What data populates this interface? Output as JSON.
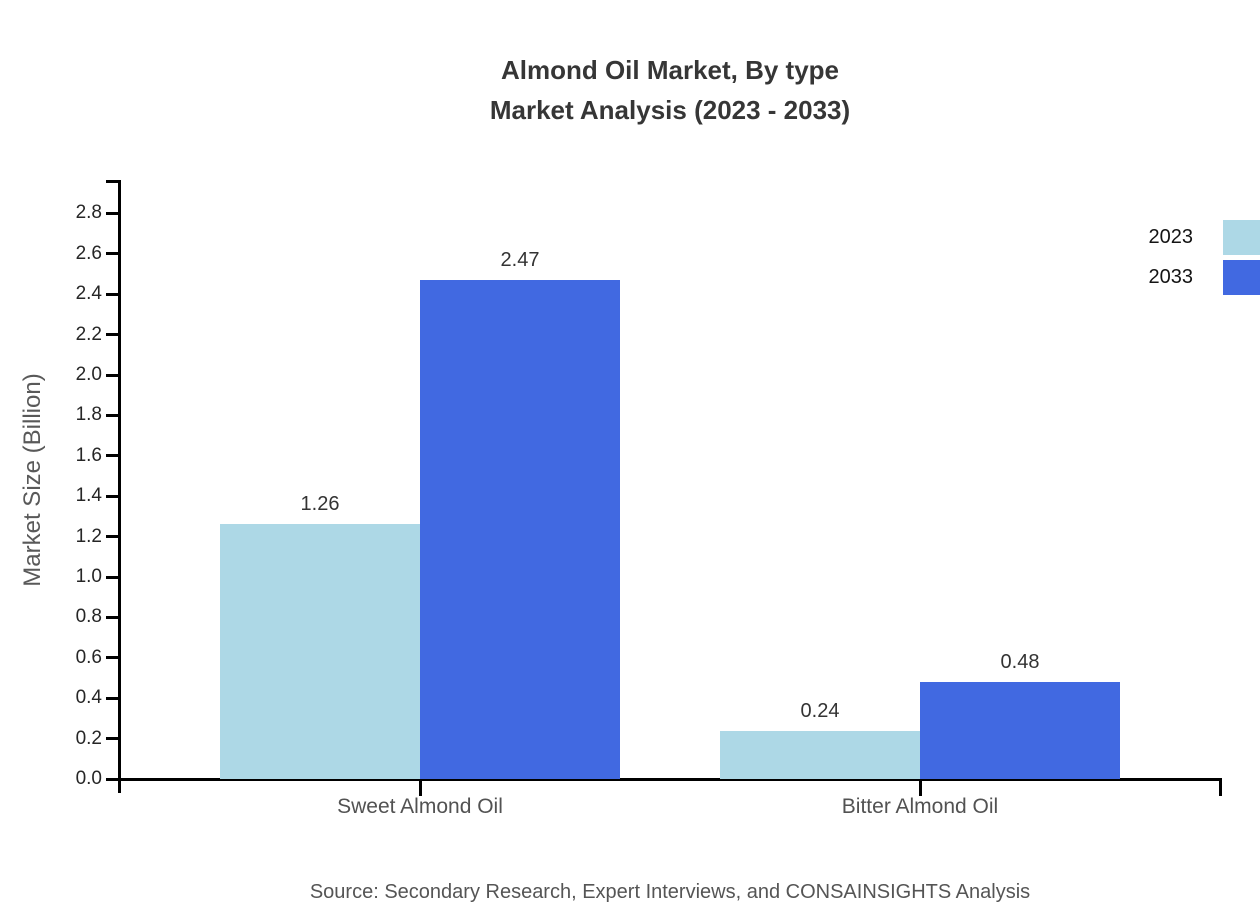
{
  "chart": {
    "title_line1": "Almond Oil Market, By type",
    "title_line2": "Market Analysis (2023 - 2033)",
    "ylabel": "Market Size (Billion)",
    "source": "Source: Secondary Research, Expert Interviews, and CONSAINSIGHTS Analysis"
  },
  "chart_data": {
    "type": "bar",
    "title": "Almond Oil Market, By type\nMarket Analysis (2023 - 2033)",
    "categories": [
      "Sweet Almond Oil",
      "Bitter Almond Oil"
    ],
    "series": [
      {
        "name": "2023",
        "color": "#ADD8E6",
        "values": [
          1.26,
          0.24
        ]
      },
      {
        "name": "2033",
        "color": "#4169E1",
        "values": [
          2.47,
          0.48
        ]
      }
    ],
    "xlabel": "",
    "ylabel": "Market Size (Billion)",
    "ylim": [
      0.0,
      2.9
    ],
    "ytick_min": 0.0,
    "ytick_max": 2.8,
    "ytick_step": 0.2,
    "grid": false,
    "legend_position": "top-right",
    "value_labels": [
      1.26,
      2.47,
      0.24,
      0.48
    ],
    "axis_color": "#000000",
    "source": "Source: Secondary Research, Expert Interviews, and CONSAINSIGHTS Analysis"
  }
}
